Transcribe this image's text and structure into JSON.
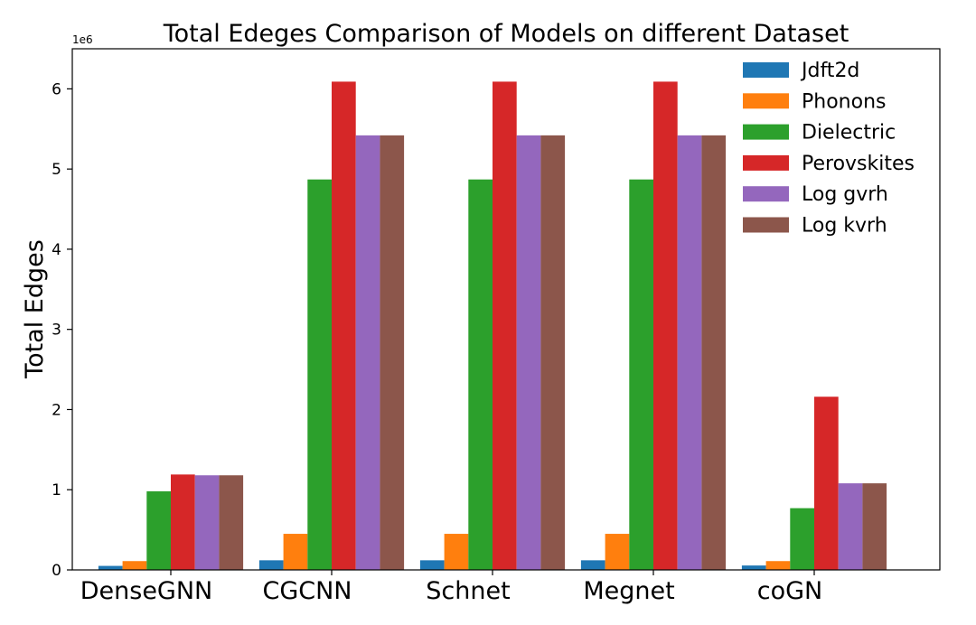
{
  "chart_data": {
    "type": "bar",
    "title": "Total Edeges Comparison of Models on different Dataset",
    "xlabel": "",
    "ylabel": "Total Edges",
    "y_offset_label": "1e6",
    "y_scale": 1000000,
    "ylim": [
      0,
      6500000
    ],
    "yticks": [
      0,
      1000000,
      2000000,
      3000000,
      4000000,
      5000000,
      6000000
    ],
    "ytick_labels": [
      "0",
      "1",
      "2",
      "3",
      "4",
      "5",
      "6"
    ],
    "grid": false,
    "legend_position": "top-right",
    "categories": [
      "DenseGNN",
      "CGCNN",
      "Schnet",
      "Megnet",
      "coGN"
    ],
    "series": [
      {
        "name": "Jdft2d",
        "color": "#1f77b4",
        "values": [
          50000,
          120000,
          120000,
          120000,
          55000
        ]
      },
      {
        "name": "Phonons",
        "color": "#ff7f0e",
        "values": [
          110000,
          450000,
          450000,
          450000,
          110000
        ]
      },
      {
        "name": "Dielectric",
        "color": "#2ca02c",
        "values": [
          980000,
          4870000,
          4870000,
          4870000,
          770000
        ]
      },
      {
        "name": "Perovskites",
        "color": "#d62728",
        "values": [
          1190000,
          6090000,
          6090000,
          6090000,
          2160000
        ]
      },
      {
        "name": "Log gvrh",
        "color": "#9467bd",
        "values": [
          1180000,
          5420000,
          5420000,
          5420000,
          1080000
        ]
      },
      {
        "name": "Log kvrh",
        "color": "#8c564b",
        "values": [
          1180000,
          5420000,
          5420000,
          5420000,
          1080000
        ]
      }
    ]
  }
}
